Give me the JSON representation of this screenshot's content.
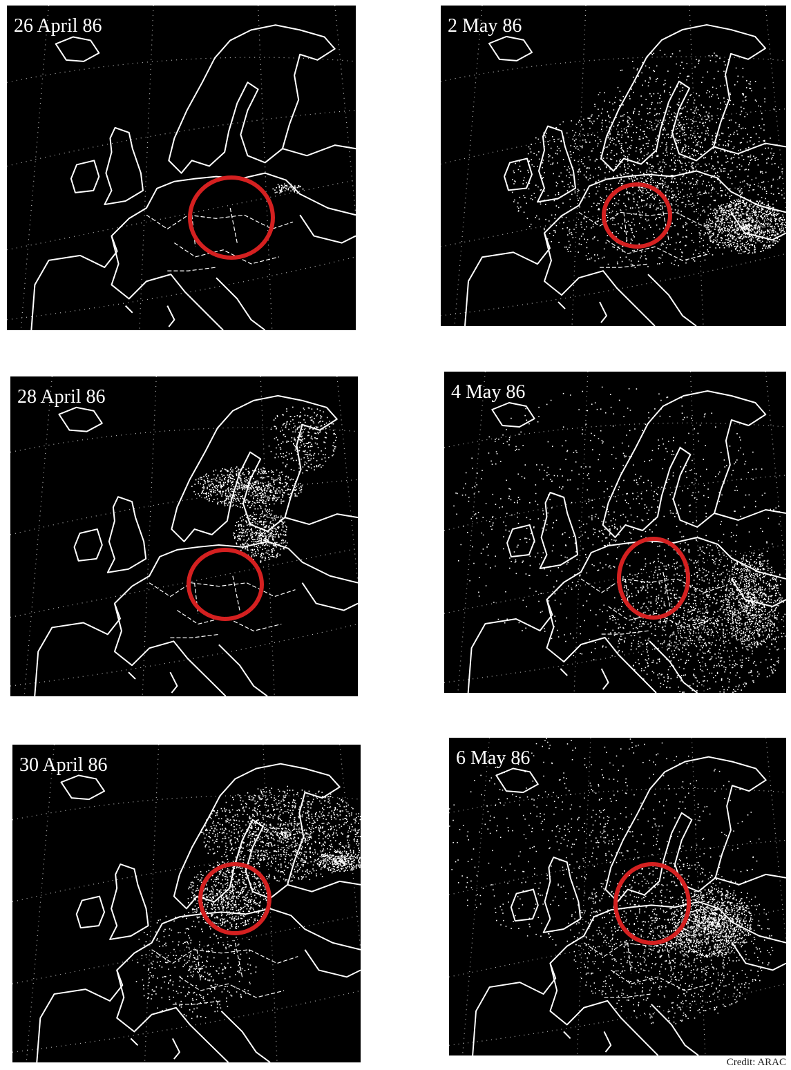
{
  "panels": [
    {
      "label": "26 April 86"
    },
    {
      "label": "2 May 86"
    },
    {
      "label": "28 April 86"
    },
    {
      "label": "4 May 86"
    },
    {
      "label": "30 April 86"
    },
    {
      "label": "6 May 86"
    }
  ],
  "credit": "Credit: ARAC"
}
